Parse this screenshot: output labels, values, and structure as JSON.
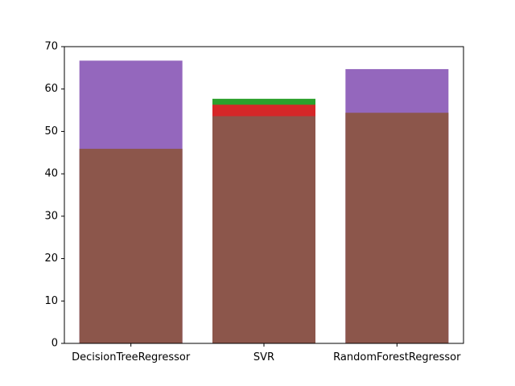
{
  "chart_data": {
    "type": "bar",
    "categories": [
      "DecisionTreeRegressor",
      "SVR",
      "RandomForestRegressor"
    ],
    "ylim": [
      0,
      70
    ],
    "yticks": [
      0,
      10,
      20,
      30,
      40,
      50,
      60,
      70
    ],
    "grid": false,
    "overlay": true,
    "series": [
      {
        "color": "#2ca02c",
        "values": [
          null,
          57.7,
          null
        ]
      },
      {
        "color": "#d62728",
        "values": [
          null,
          56.3,
          null
        ]
      },
      {
        "color": "#9467bd",
        "values": [
          66.7,
          null,
          64.7
        ]
      },
      {
        "color": "#8c564b",
        "values": [
          45.9,
          53.6,
          54.4
        ]
      }
    ],
    "title": "",
    "xlabel": "",
    "ylabel": ""
  }
}
